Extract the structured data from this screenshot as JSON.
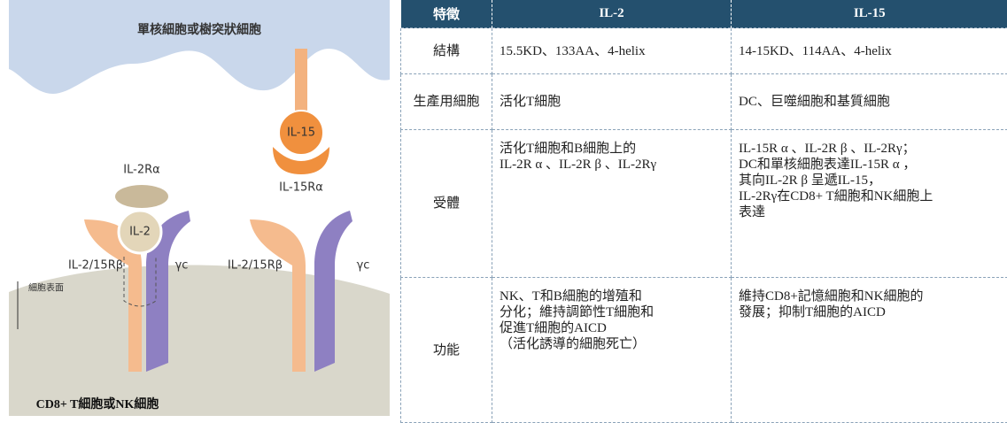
{
  "diagram": {
    "top_cell": "單核細胞或樹突狀細胞",
    "il15": "IL-15",
    "il15ra": "IL-15Rα",
    "il2ra": "IL-2Rα",
    "il2": "IL-2",
    "beta_left": "IL-2/15Rβ",
    "gamma_left": "γc",
    "beta_right": "IL-2/15Rβ",
    "gamma_right": "γc",
    "surface": "細胞表面",
    "bottom_cell": "CD8+ T細胞或NK細胞"
  },
  "table": {
    "header": [
      "特徵",
      "IL-2",
      "IL-15"
    ],
    "rows": [
      [
        "結構",
        "15.5KD、133AA、4-helix",
        "14-15KD、114AA、4-helix"
      ],
      [
        "生產用細胞",
        "活化T細胞",
        "DC、巨噬細胞和基質細胞"
      ],
      [
        "受體",
        "活化T細胞和B細胞上的\nIL-2R α 、IL-2R β 、IL-2Rγ",
        "IL-15R α 、IL-2R β 、IL-2Rγ；\nDC和單核細胞表達IL-15R α ，\n其向IL-2R β 呈遞IL-15，\nIL-2Rγ在CD8+ T細胞和NK細胞上\n表達"
      ],
      [
        "功能",
        "NK、T和B細胞的增殖和\n分化；維持調節性T細胞和\n促進T細胞的AICD\n（活化誘導的細胞死亡）",
        "維持CD8+記憶細胞和NK細胞的\n發展；抑制T細胞的AICD"
      ]
    ]
  }
}
